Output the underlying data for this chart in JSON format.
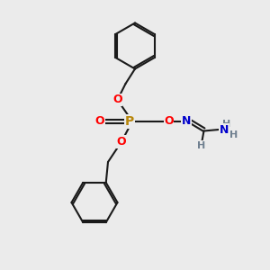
{
  "bg_color": "#ebebeb",
  "bond_color": "#1a1a1a",
  "P_color": "#B8860B",
  "O_color": "#FF0000",
  "N_color": "#0000CC",
  "H_color": "#708090",
  "lw": 1.5,
  "fig_size": [
    3.0,
    3.0
  ],
  "dpi": 100,
  "xlim": [
    0,
    10
  ],
  "ylim": [
    0,
    10
  ]
}
